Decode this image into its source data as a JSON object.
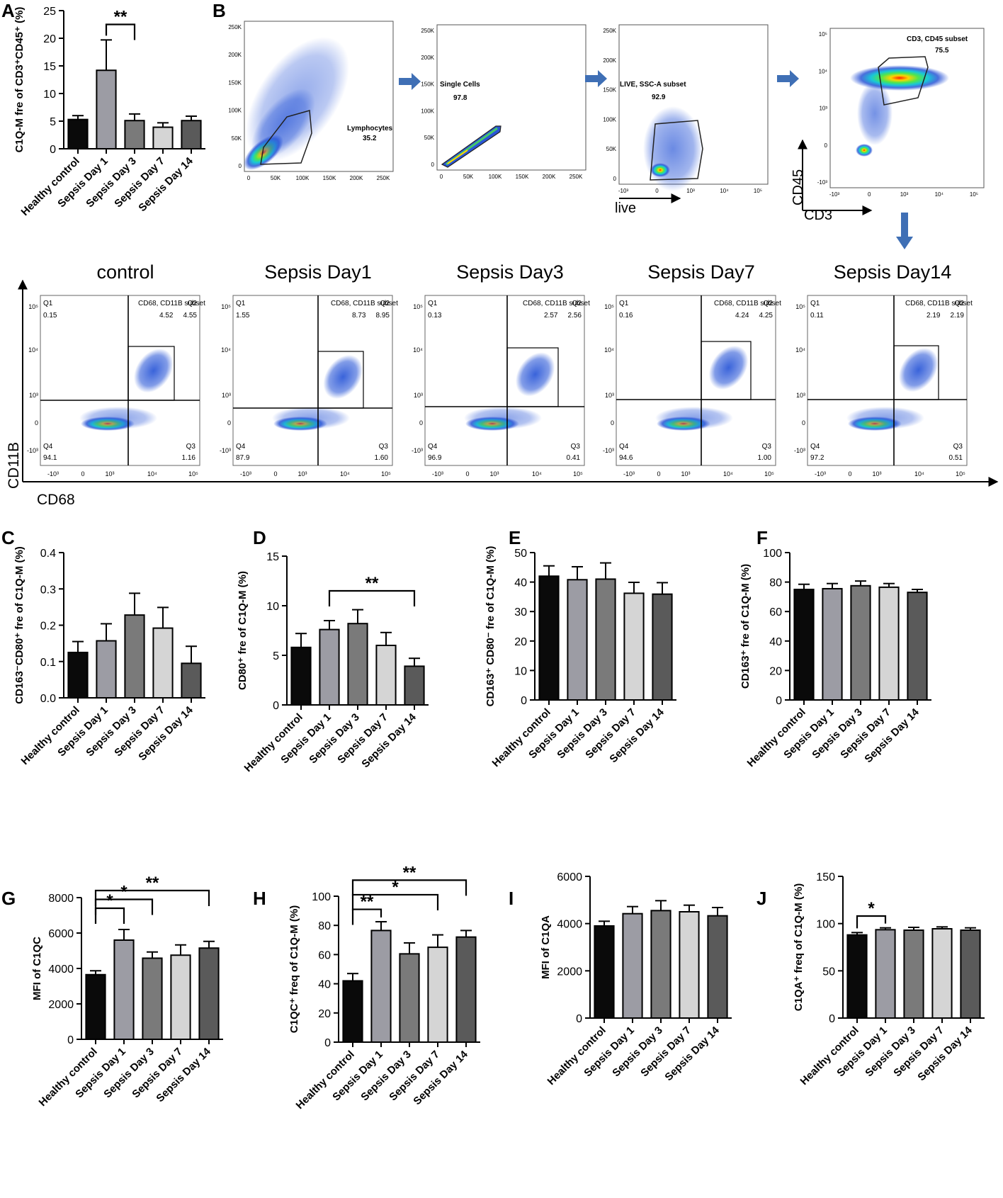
{
  "figure": {
    "panel_letters": [
      "A",
      "B",
      "C",
      "D",
      "E",
      "F",
      "G",
      "H",
      "I",
      "J"
    ]
  },
  "gating": {
    "plots": [
      {
        "id": "lymph",
        "gate_name": "Lymphocytes",
        "gate_value": "35.2",
        "y_ticks": [
          "250K",
          "200K",
          "150K",
          "100K",
          "50K",
          "0"
        ],
        "x_ticks": [
          "0",
          "50K",
          "100K",
          "150K",
          "200K",
          "250K"
        ]
      },
      {
        "id": "single",
        "gate_name": "Single Cells",
        "gate_value": "97.8",
        "y_ticks": [
          "250K",
          "200K",
          "150K",
          "100K",
          "50K",
          "0"
        ],
        "x_ticks": [
          "0",
          "50K",
          "100K",
          "150K",
          "200K",
          "250K"
        ]
      },
      {
        "id": "live",
        "gate_name": "LIVE, SSC-A subset",
        "gate_value": "92.9",
        "y_ticks": [
          "250K",
          "200K",
          "150K",
          "100K",
          "50K",
          "0"
        ],
        "x_ticks": [
          "-10³",
          "0",
          "10³",
          "10⁴",
          "10⁵"
        ],
        "x_axis_label": "live"
      },
      {
        "id": "cd3cd45",
        "gate_name": "CD3, CD45 subset",
        "gate_value": "75.5",
        "y_ticks": [
          "10⁵",
          "10⁴",
          "10³",
          "0",
          "-10³"
        ],
        "x_ticks": [
          "-10³",
          "0",
          "10³",
          "10⁴",
          "10⁵"
        ],
        "x_axis_label": "CD3",
        "y_axis_label": "CD45"
      }
    ]
  },
  "quadrants": {
    "x_axis_label": "CD68",
    "y_axis_label": "CD11B",
    "gate_label": "CD68, CD11B subset",
    "y_ticks": [
      "10⁵",
      "10⁴",
      "10³",
      "0",
      "-10³"
    ],
    "x_ticks": [
      "-10³",
      "0",
      "10³",
      "10⁴",
      "10⁵"
    ],
    "conditions": [
      {
        "title": "control",
        "q1": "0.15",
        "q2": "4.55",
        "subset": "4.52",
        "q3": "1.16",
        "q4": "94.1"
      },
      {
        "title": "Sepsis Day1",
        "q1": "1.55",
        "q2": "8.95",
        "subset": "8.73",
        "q3": "1.60",
        "q4": "87.9"
      },
      {
        "title": "Sepsis Day3",
        "q1": "0.13",
        "q2": "2.56",
        "subset": "2.57",
        "q3": "0.41",
        "q4": "96.9"
      },
      {
        "title": "Sepsis Day7",
        "q1": "0.16",
        "q2": "4.25",
        "subset": "4.24",
        "q3": "1.00",
        "q4": "94.6"
      },
      {
        "title": "Sepsis Day14",
        "q1": "0.11",
        "q2": "2.19",
        "subset": "2.19",
        "q3": "0.51",
        "q4": "97.2"
      }
    ]
  },
  "colors": {
    "bars": [
      "#0a0a0a",
      "#9c9ca4",
      "#7a7a7a",
      "#d5d5d5",
      "#5a5a5a"
    ],
    "arrow": "#3f6fb5"
  },
  "chart_data": [
    {
      "id": "A",
      "type": "bar",
      "categories": [
        "Healthy control",
        "Sepsis Day 1",
        "Sepsis Day 3",
        "Sepsis Day 7",
        "Sepsis Day 14"
      ],
      "values": [
        5.3,
        14.2,
        5.1,
        3.9,
        5.1
      ],
      "errors": [
        0.7,
        5.5,
        1.2,
        0.8,
        0.8
      ],
      "ylabel": "C1Q-M fre of CD3⁺CD45⁺ (%)",
      "ylim": [
        0,
        25
      ],
      "yticks": [
        0,
        5,
        10,
        15,
        20,
        25
      ],
      "sig": [
        {
          "from": 1,
          "to": 2,
          "label": "**",
          "y": 22.5
        }
      ]
    },
    {
      "id": "C",
      "type": "bar",
      "categories": [
        "Healthy control",
        "Sepsis Day 1",
        "Sepsis Day 3",
        "Sepsis Day 7",
        "Sepsis Day 14"
      ],
      "values": [
        0.125,
        0.157,
        0.228,
        0.192,
        0.095
      ],
      "errors": [
        0.03,
        0.047,
        0.06,
        0.057,
        0.047
      ],
      "ylabel": "CD163⁻CD80⁺ fre of C1Q-M (%)",
      "ylim": [
        0,
        0.4
      ],
      "yticks": [
        0,
        0.1,
        0.2,
        0.3,
        0.4
      ],
      "tick_format": "0.0",
      "sig": []
    },
    {
      "id": "D",
      "type": "bar",
      "categories": [
        "Healthy control",
        "Sepsis Day 1",
        "Sepsis Day 3",
        "Sepsis Day 7",
        "Sepsis Day 14"
      ],
      "values": [
        5.8,
        7.6,
        8.2,
        6.0,
        3.9
      ],
      "errors": [
        1.4,
        0.9,
        1.4,
        1.3,
        0.8
      ],
      "ylabel": "CD80⁺ fre of C1Q-M (%)",
      "ylim": [
        0,
        15
      ],
      "yticks": [
        0,
        5,
        10,
        15
      ],
      "sig": [
        {
          "from": 1,
          "to": 4,
          "label": "**",
          "y": 11.5
        }
      ]
    },
    {
      "id": "E",
      "type": "bar",
      "categories": [
        "Healthy control",
        "Sepsis Day 1",
        "Sepsis Day 3",
        "Sepsis Day 7",
        "Sepsis Day 14"
      ],
      "values": [
        42,
        40.8,
        41,
        36.2,
        35.9
      ],
      "errors": [
        3.5,
        4.4,
        5.5,
        3.7,
        3.9
      ],
      "ylabel": "CD163⁺ CD80⁻ fre of C1Q-M (%)",
      "ylim": [
        0,
        50
      ],
      "yticks": [
        0,
        10,
        20,
        30,
        40,
        50
      ],
      "sig": []
    },
    {
      "id": "F",
      "type": "bar",
      "categories": [
        "Healthy control",
        "Sepsis Day 1",
        "Sepsis Day 3",
        "Sepsis Day 7",
        "Sepsis Day 14"
      ],
      "values": [
        75,
        75.5,
        77.5,
        76.5,
        73
      ],
      "errors": [
        3.5,
        3.5,
        3.2,
        2.5,
        2
      ],
      "ylabel": "CD163⁺ fre of C1Q-M (%)",
      "ylim": [
        0,
        100
      ],
      "yticks": [
        0,
        20,
        40,
        60,
        80,
        100
      ],
      "sig": []
    },
    {
      "id": "G",
      "type": "bar",
      "categories": [
        "Healthy control",
        "Sepsis Day 1",
        "Sepsis Day 3",
        "Sepsis Day 7",
        "Sepsis Day 14"
      ],
      "values": [
        3650,
        5600,
        4580,
        4750,
        5150
      ],
      "errors": [
        220,
        600,
        350,
        580,
        380
      ],
      "ylabel": "MFI of C1QC",
      "ylim": [
        0,
        8000
      ],
      "yticks": [
        0,
        2000,
        4000,
        6000,
        8000
      ],
      "sig": [
        {
          "from": 0,
          "to": 1,
          "label": "*",
          "y": 7400
        },
        {
          "from": 0,
          "to": 2,
          "label": "*",
          "y": 7900
        },
        {
          "from": 0,
          "to": 4,
          "label": "**",
          "y": 8400
        }
      ]
    },
    {
      "id": "H",
      "type": "bar",
      "categories": [
        "Healthy control",
        "Sepsis Day 1",
        "Sepsis Day 3",
        "Sepsis Day 7",
        "Sepsis Day 14"
      ],
      "values": [
        42,
        76.5,
        60.5,
        65,
        72
      ],
      "errors": [
        5,
        6,
        7.5,
        8.5,
        4.5
      ],
      "ylabel": "C1QC⁺ freq of C1Q-M (%)",
      "ylim": [
        0,
        100
      ],
      "yticks": [
        0,
        20,
        40,
        60,
        80,
        100
      ],
      "sig": [
        {
          "from": 0,
          "to": 1,
          "label": "**",
          "y": 91
        },
        {
          "from": 0,
          "to": 3,
          "label": "*",
          "y": 101
        },
        {
          "from": 0,
          "to": 4,
          "label": "**",
          "y": 111
        }
      ]
    },
    {
      "id": "I",
      "type": "bar",
      "categories": [
        "Healthy control",
        "Sepsis Day 1",
        "Sepsis Day 3",
        "Sepsis Day 7",
        "Sepsis Day 14"
      ],
      "values": [
        3900,
        4420,
        4550,
        4500,
        4330
      ],
      "errors": [
        200,
        300,
        420,
        280,
        350
      ],
      "ylabel": "MFI of C1QA",
      "ylim": [
        0,
        6000
      ],
      "yticks": [
        0,
        2000,
        4000,
        6000
      ],
      "sig": []
    },
    {
      "id": "J",
      "type": "bar",
      "categories": [
        "Healthy control",
        "Sepsis Day 1",
        "Sepsis Day 3",
        "Sepsis Day 7",
        "Sepsis Day 14"
      ],
      "values": [
        88,
        93.5,
        93,
        94.5,
        93
      ],
      "errors": [
        2.5,
        2,
        3,
        2,
        2.5
      ],
      "ylabel": "C1QA⁺ freq of C1Q-M (%)",
      "ylim": [
        0,
        150
      ],
      "yticks": [
        0,
        50,
        100,
        150
      ],
      "sig": [
        {
          "from": 0,
          "to": 1,
          "label": "*",
          "y": 108
        }
      ]
    }
  ]
}
